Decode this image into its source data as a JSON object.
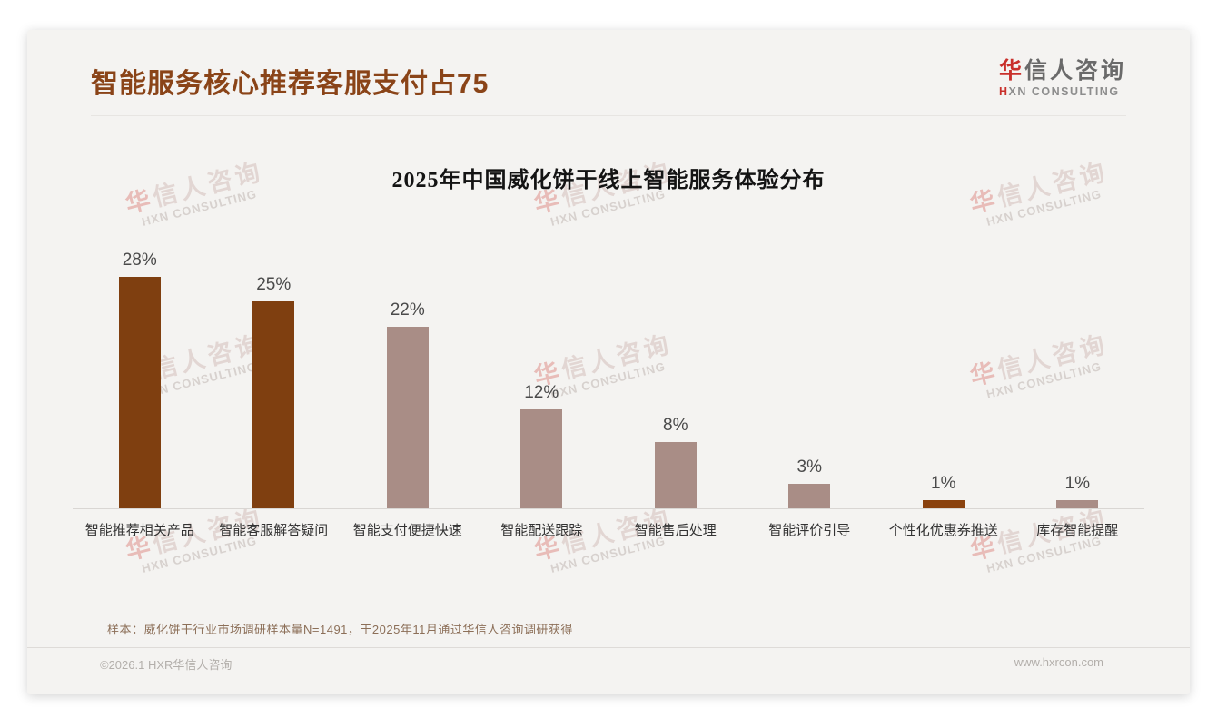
{
  "header": {
    "title": "智能服务核心推荐客服支付占75"
  },
  "logo": {
    "cn_accent": "华",
    "cn_rest": "信人咨询",
    "en_accent": "H",
    "en_rest": "XN CONSULTING"
  },
  "watermark": {
    "cn_accent": "华",
    "cn_rest": "信人咨询",
    "en": "HXN CONSULTING"
  },
  "chart_data": {
    "type": "bar",
    "title": "2025年中国威化饼干线上智能服务体验分布",
    "categories": [
      "智能推荐相关产品",
      "智能客服解答疑问",
      "智能支付便捷快速",
      "智能配送跟踪",
      "智能售后处理",
      "智能评价引导",
      "个性化优惠券推送",
      "库存智能提醒"
    ],
    "values": [
      28,
      25,
      22,
      12,
      8,
      3,
      1,
      1
    ],
    "unit": "%",
    "bar_colors": [
      "#7f3f10",
      "#7f3f10",
      "#a98d86",
      "#a98d86",
      "#a98d86",
      "#a98d86",
      "#8a420e",
      "#a98d86"
    ],
    "ylim": [
      0,
      30
    ],
    "grid": false,
    "legend": "none",
    "xlabel": "",
    "ylabel": ""
  },
  "footnote": "样本：威化饼干行业市场调研样本量N=1491，于2025年11月通过华信人咨询调研获得",
  "footer": {
    "copyright": "©2026.1 HXR华信人咨询",
    "website": "www.hxrcon.com"
  },
  "colors": {
    "accent_dark": "#7f3f10",
    "accent_light": "#a98d86",
    "title_brown": "#8a4418",
    "logo_red": "#c9302b",
    "card_background": "#f4f3f1"
  }
}
